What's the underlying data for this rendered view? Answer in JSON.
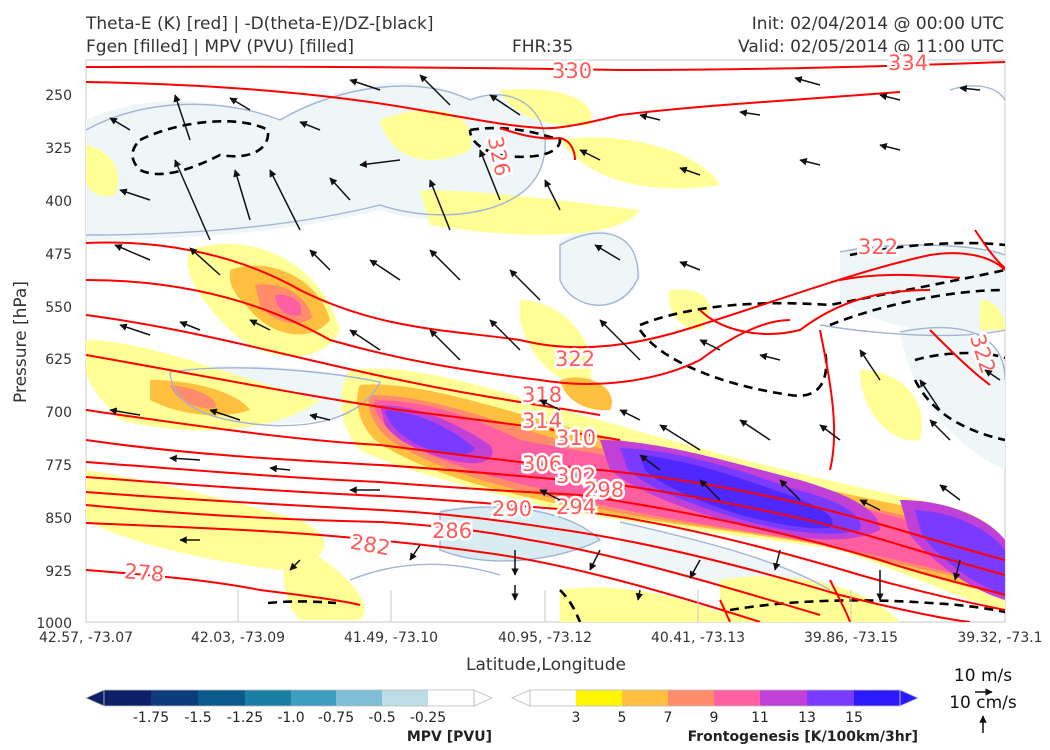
{
  "header": {
    "title_line1": "Theta-E (K) [red] | -D(theta-E)/DZ-[black]",
    "title_line2": "Fgen [filled] | MPV (PVU) [filled]",
    "fhr": "FHR:35",
    "init": "Init: 02/04/2014 @ 00:00 UTC",
    "valid": "Valid: 02/05/2014 @ 11:00 UTC"
  },
  "chart_data": {
    "type": "cross-section",
    "xlabel": "Latitude,Longitude",
    "ylabel": "Pressure [hPa]",
    "ylim": [
      1000,
      205
    ],
    "x_ticks": [
      "42.57, -73.07",
      "42.03, -73.09",
      "41.49, -73.10",
      "40.95, -73.12",
      "40.41, -73.13",
      "39.86, -73.15",
      "39.32, -73.1"
    ],
    "y_ticks": [
      250,
      325,
      400,
      475,
      550,
      625,
      700,
      775,
      850,
      925,
      1000
    ],
    "theta_e_contour_labels": [
      "330",
      "334",
      "326",
      "322",
      "322",
      "322",
      "318",
      "314",
      "310",
      "306",
      "302",
      "298",
      "294",
      "290",
      "286",
      "282",
      "278"
    ],
    "contour_colors": {
      "theta_e": "#ff0000",
      "dtheta_dz": "#000000",
      "mpv_line": "#a4b4d4"
    },
    "mpv_colorbar": {
      "label": "MPV [PVU]",
      "ticks": [
        "-1.75",
        "-1.5",
        "-1.25",
        "-1.0",
        "-0.75",
        "-0.5",
        "-0.25"
      ],
      "colors": [
        "#0d1f66",
        "#0b3b7a",
        "#0a5a8c",
        "#1a7fa5",
        "#3c9fc0",
        "#7ebdd6",
        "#bcdce6",
        "#ffffff"
      ]
    },
    "fgen_colorbar": {
      "label": "Frontogenesis [K/100km/3hr]",
      "ticks": [
        "3",
        "5",
        "7",
        "9",
        "11",
        "13",
        "15"
      ],
      "colors": [
        "#ffffff",
        "#fff700",
        "#ffbf3f",
        "#ff8c6b",
        "#ff5fa0",
        "#c040d8",
        "#7b3aff",
        "#2a1aff"
      ]
    },
    "vector_key": {
      "horizontal": "10 m/s",
      "vertical": "10 cm/s"
    }
  }
}
